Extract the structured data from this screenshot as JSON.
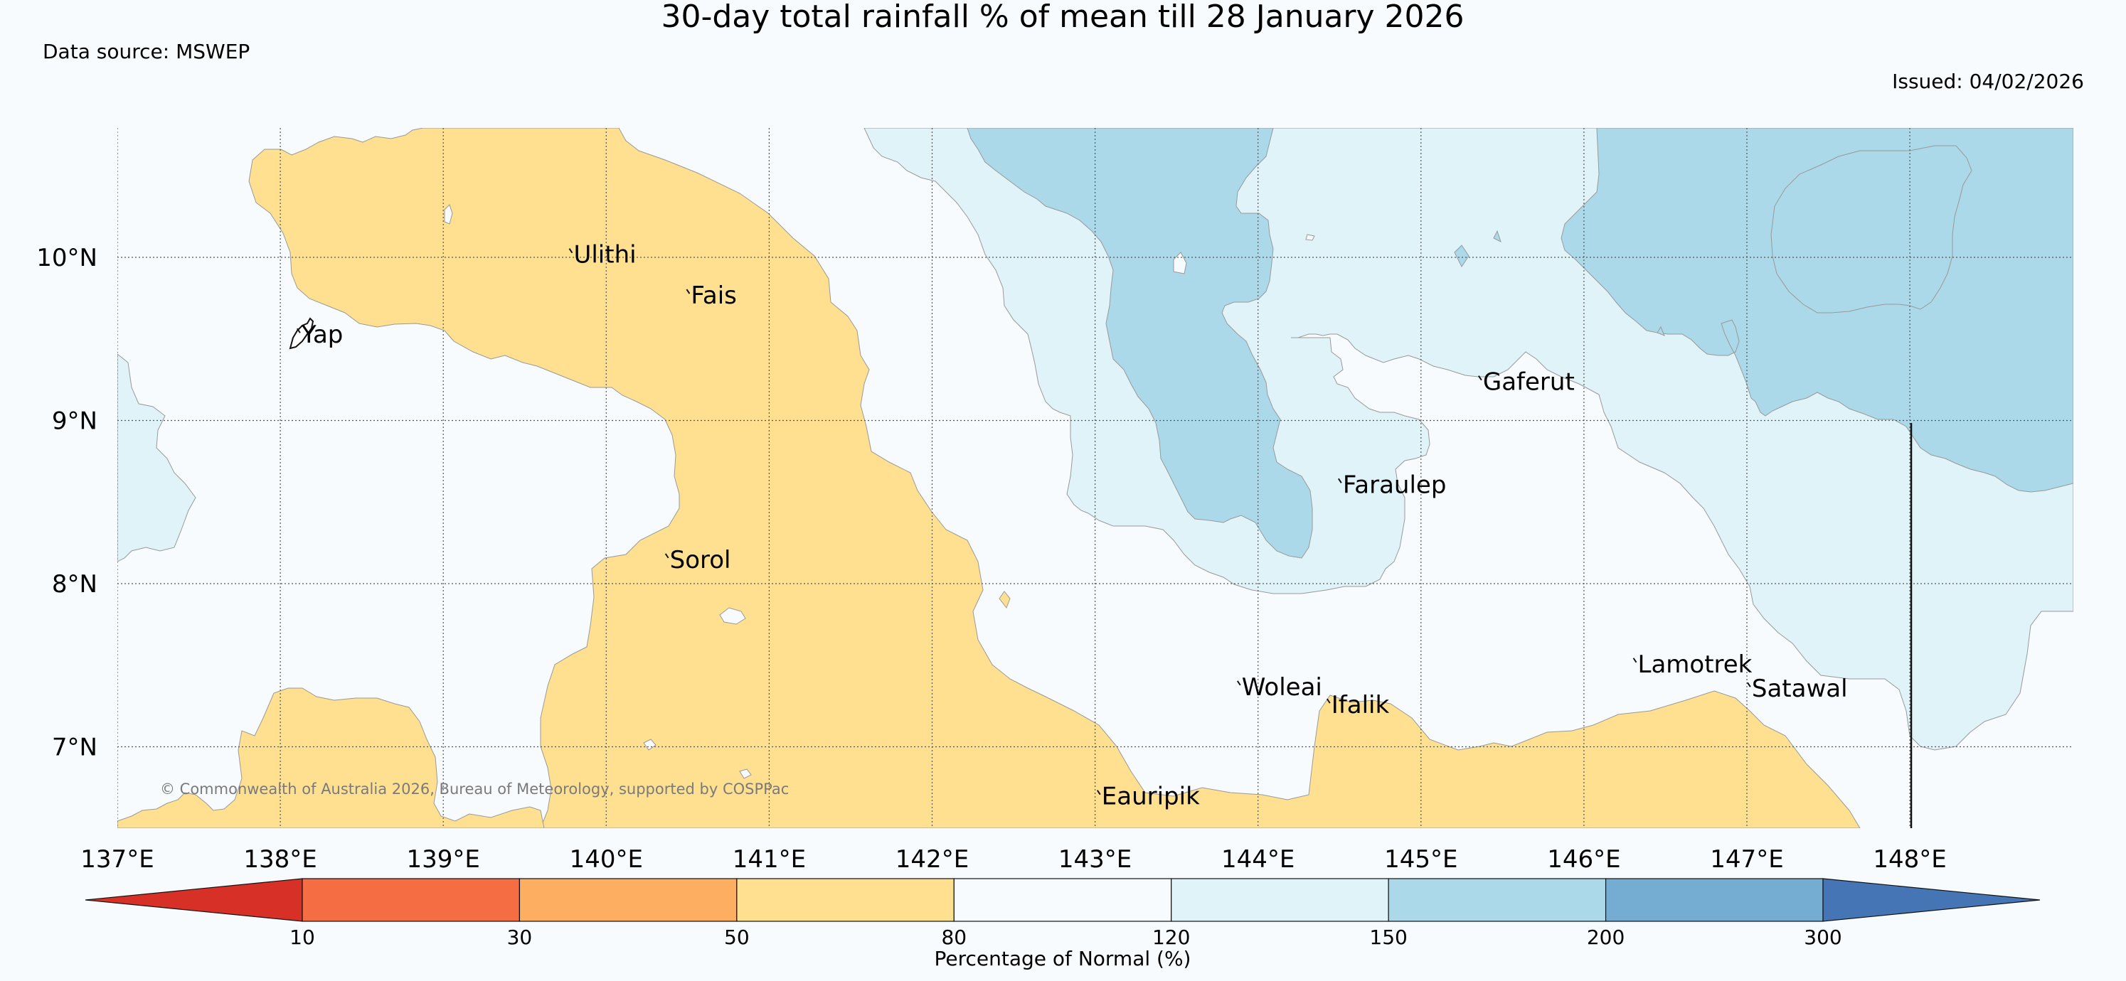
{
  "title": "30-day total rainfall % of mean till 28 January 2026",
  "data_source": "Data source: MSWEP",
  "issued": "Issued: 04/02/2026",
  "copyright": "© Commonwealth of Australia 2026, Bureau of Meteorology, supported by COSPPac",
  "map": {
    "lon_range": [
      137,
      148.5
    ],
    "lat_range": [
      6.5,
      10.8
    ],
    "lon_ticks": [
      "137°E",
      "138°E",
      "139°E",
      "140°E",
      "141°E",
      "142°E",
      "143°E",
      "144°E",
      "145°E",
      "146°E",
      "147°E",
      "148°E"
    ],
    "lat_ticks": [
      "10°N",
      "9°N",
      "8°N",
      "7°N"
    ],
    "places": [
      {
        "name": "Ulithi",
        "lon": 139.8,
        "lat": 10.01
      },
      {
        "name": "Fais",
        "lon": 140.52,
        "lat": 9.76
      },
      {
        "name": "Yap",
        "lon": 138.13,
        "lat": 9.52
      },
      {
        "name": "Gaferut",
        "lon": 145.38,
        "lat": 9.23
      },
      {
        "name": "Faraulep",
        "lon": 144.52,
        "lat": 8.6
      },
      {
        "name": "Sorol",
        "lon": 140.39,
        "lat": 8.14
      },
      {
        "name": "Woleai",
        "lon": 143.9,
        "lat": 7.36
      },
      {
        "name": "Ifalik",
        "lon": 144.45,
        "lat": 7.25
      },
      {
        "name": "Lamotrek",
        "lon": 146.33,
        "lat": 7.5
      },
      {
        "name": "Satawal",
        "lon": 147.03,
        "lat": 7.35
      },
      {
        "name": "Eauripik",
        "lon": 143.04,
        "lat": 6.69
      }
    ]
  },
  "legend": {
    "title": "Percentage of Normal (%)",
    "ticks": [
      "10",
      "30",
      "50",
      "80",
      "120",
      "150",
      "200",
      "300"
    ],
    "colors": [
      "#d73027",
      "#f46d43",
      "#fdae61",
      "#fee090",
      "#f7fbfd",
      "#e0f3f8",
      "#abd9e9",
      "#74add1",
      "#4575b4"
    ],
    "bins": [
      "<10",
      "10-30",
      "30-50",
      "50-80",
      "80-120",
      "120-150",
      "150-200",
      "200-300",
      ">300"
    ]
  },
  "colors": {
    "background": "#f7fbfd",
    "grid": "#555555",
    "coast": "#111111"
  }
}
